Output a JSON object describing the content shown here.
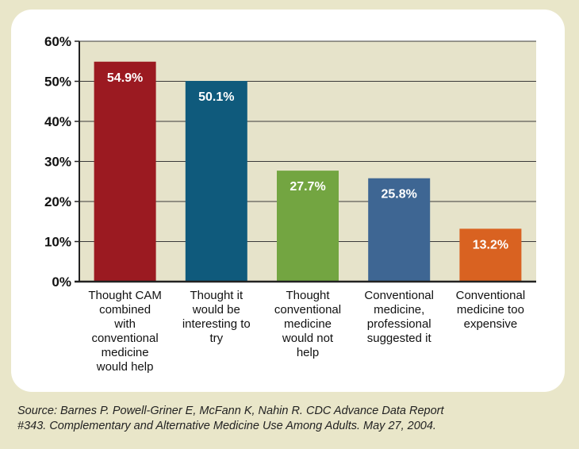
{
  "chart_data": {
    "type": "bar",
    "categories": [
      [
        "Thought CAM",
        "combined",
        "with",
        "conventional",
        "medicine",
        "would help"
      ],
      [
        "Thought it",
        "would be",
        "interesting to",
        "try"
      ],
      [
        "Thought",
        "conventional",
        "medicine",
        "would not",
        "help"
      ],
      [
        "Conventional",
        "medicine,",
        "professional",
        "suggested it"
      ],
      [
        "Conventional",
        "medicine too",
        "expensive"
      ]
    ],
    "values": [
      54.9,
      50.1,
      27.7,
      25.8,
      13.2
    ],
    "value_labels": [
      "54.9%",
      "50.1%",
      "27.7%",
      "25.8%",
      "13.2%"
    ],
    "colors": [
      "#9b1a21",
      "#0f5a7c",
      "#73a541",
      "#3e6693",
      "#d96221"
    ],
    "yticks": [
      0,
      10,
      20,
      30,
      40,
      50,
      60
    ],
    "ytick_labels": [
      "0%",
      "10%",
      "20%",
      "30%",
      "40%",
      "50%",
      "60%"
    ],
    "ylim": [
      0,
      60
    ],
    "plot_background": "#e6e3ca",
    "grid": true,
    "title": "",
    "xlabel": "",
    "ylabel": ""
  },
  "source": {
    "line1": "Source: Barnes P. Powell-Griner E, McFann K, Nahin R. CDC Advance Data Report",
    "line2": "#343. Complementary and Alternative Medicine Use Among Adults. May 27, 2004."
  }
}
